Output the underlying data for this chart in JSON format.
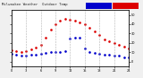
{
  "background_color": "#f0f0f0",
  "plot_bg": "#ffffff",
  "temp_color": "#dd0000",
  "dew_color": "#0000cc",
  "legend_temp_color": "#dd0000",
  "legend_dew_color": "#0000cc",
  "xlim": [
    0,
    24
  ],
  "ylim": [
    -5,
    55
  ],
  "hours": [
    0,
    1,
    2,
    3,
    4,
    5,
    6,
    7,
    8,
    9,
    10,
    11,
    12,
    13,
    14,
    15,
    16,
    17,
    18,
    19,
    20,
    21,
    22,
    23,
    24
  ],
  "temp_values": [
    12,
    11,
    10,
    11,
    13,
    15,
    18,
    26,
    34,
    40,
    44,
    46,
    45,
    44,
    42,
    40,
    36,
    32,
    28,
    24,
    22,
    20,
    18,
    16,
    14
  ],
  "dew_values": [
    8,
    7,
    6,
    6,
    7,
    7,
    8,
    9,
    10,
    10,
    10,
    11,
    25,
    26,
    26,
    14,
    10,
    9,
    8,
    7,
    7,
    6,
    6,
    5,
    5
  ],
  "grid_x": [
    0,
    3,
    6,
    9,
    12,
    15,
    18,
    21,
    24
  ],
  "yticks": [
    0,
    10,
    20,
    30,
    40,
    50
  ],
  "title_left": "Milwaukee Weather",
  "title_right": "Outdoor Temp vs Dew Pt",
  "title_fontsize": 3.5,
  "tick_fontsize": 2.5,
  "markersize": 1.8
}
